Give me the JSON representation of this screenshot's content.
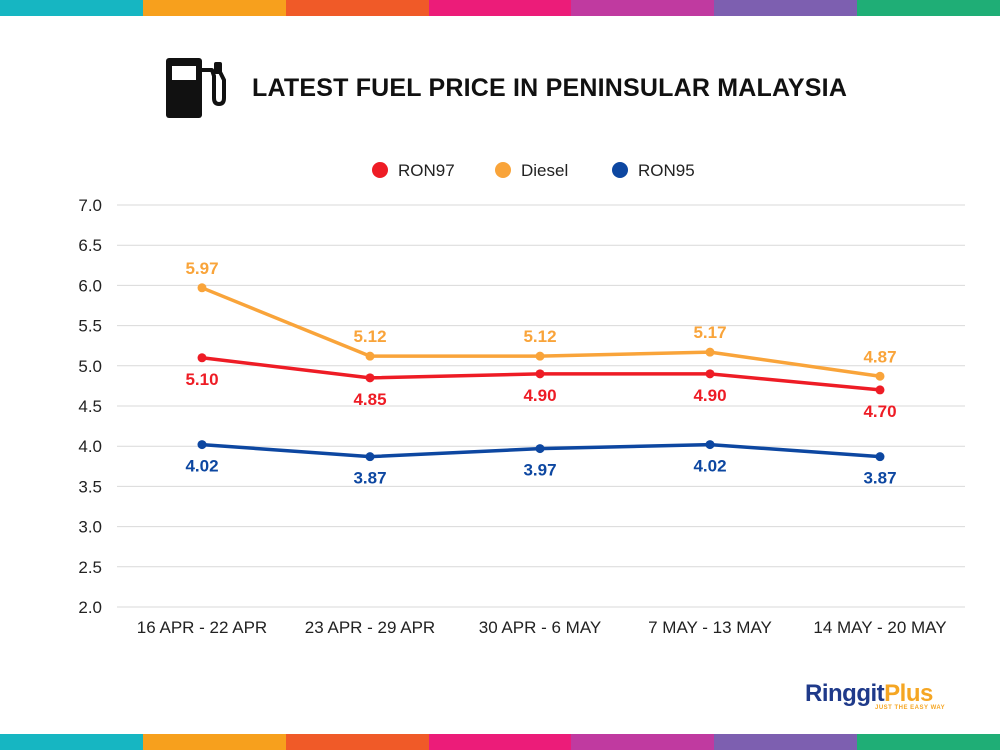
{
  "stripe_colors": [
    "#16b6c2",
    "#f7a01d",
    "#f05a28",
    "#ec1c79",
    "#c03aa0",
    "#7d5fb0",
    "#1fae76"
  ],
  "header": {
    "icon": "fuel-pump-icon",
    "title": "LATEST FUEL PRICE IN PENINSULAR MALAYSIA"
  },
  "brand": {
    "name_part1": "Ringgit",
    "name_part2": "Plus",
    "tagline": "JUST THE EASY WAY"
  },
  "chart_data": {
    "type": "line",
    "title": "LATEST FUEL PRICE IN PENINSULAR MALAYSIA",
    "xlabel": "",
    "ylabel": "",
    "categories": [
      "16 APR - 22 APR",
      "23 APR - 29 APR",
      "30 APR - 6 MAY",
      "7 MAY - 13 MAY",
      "14 MAY - 20 MAY"
    ],
    "ylim": [
      2.0,
      7.0
    ],
    "yticks": [
      "2.0",
      "2.5",
      "3.0",
      "3.5",
      "4.0",
      "4.5",
      "5.0",
      "5.5",
      "6.0",
      "6.5",
      "7.0"
    ],
    "grid": true,
    "legend_position": "top-center",
    "series": [
      {
        "name": "RON97",
        "color": "#ee1c25",
        "label_position": "below",
        "values": [
          5.1,
          4.85,
          4.9,
          4.9,
          4.7
        ],
        "labels": [
          "5.10",
          "4.85",
          "4.90",
          "4.90",
          "4.70"
        ]
      },
      {
        "name": "Diesel",
        "color": "#f9a43a",
        "label_position": "above",
        "values": [
          5.97,
          5.12,
          5.12,
          5.17,
          4.87
        ],
        "labels": [
          "5.97",
          "5.12",
          "5.12",
          "5.17",
          "4.87"
        ]
      },
      {
        "name": "RON95",
        "color": "#0d47a1",
        "label_position": "below",
        "values": [
          4.02,
          3.87,
          3.97,
          4.02,
          3.87
        ],
        "labels": [
          "4.02",
          "3.87",
          "3.97",
          "4.02",
          "3.87"
        ]
      }
    ]
  }
}
